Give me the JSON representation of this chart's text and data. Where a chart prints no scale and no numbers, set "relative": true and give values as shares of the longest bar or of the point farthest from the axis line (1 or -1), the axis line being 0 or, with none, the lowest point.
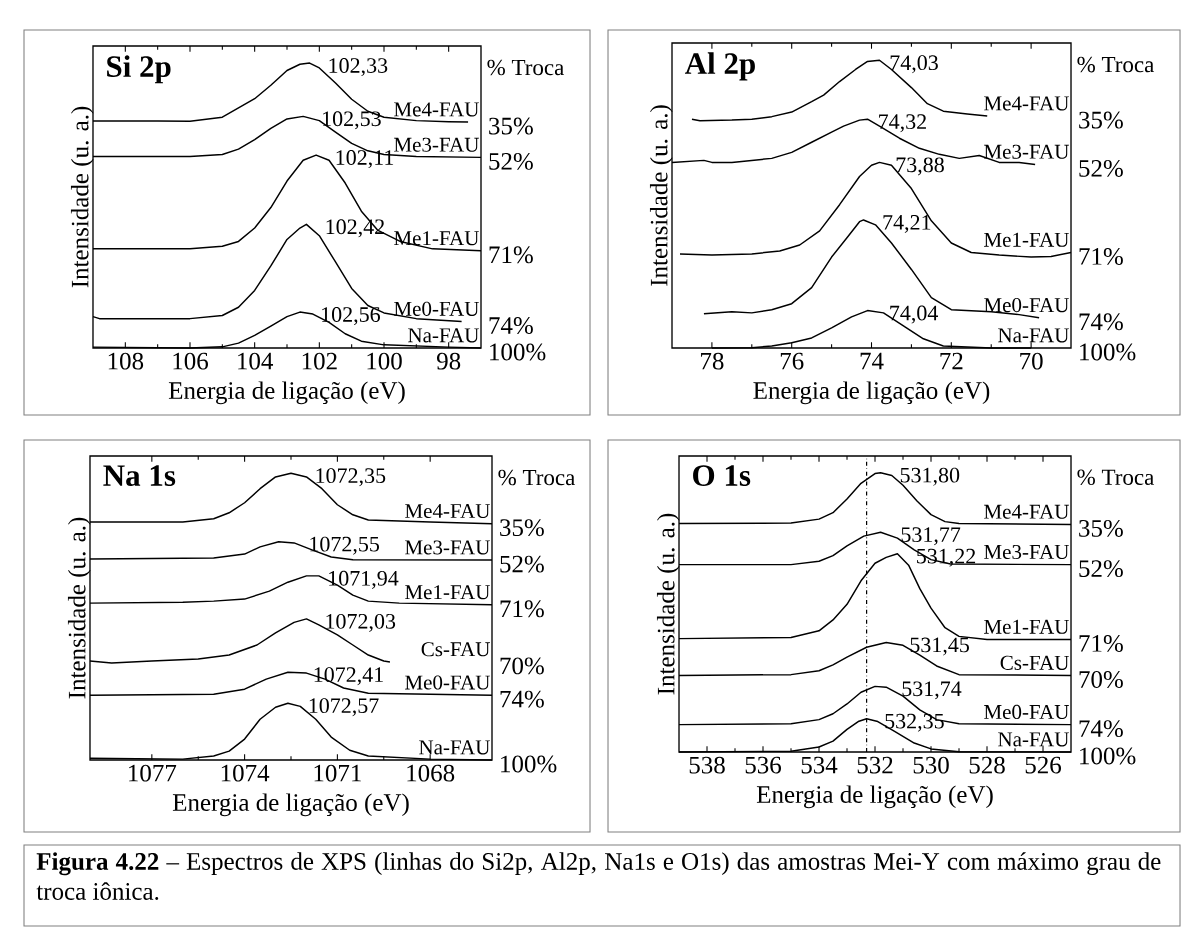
{
  "chart_data": [
    {
      "type": "line",
      "title": "Si 2p",
      "xlabel": "Energia de ligação (eV)",
      "ylabel": "Intensidade (u. a.)",
      "relative": true,
      "xlim": [
        109,
        97
      ],
      "xticks": [
        108,
        106,
        104,
        102,
        100,
        98
      ],
      "series": [
        {
          "name": "Me4-FAU",
          "color": "#000000",
          "x": [
            109,
            107,
            106,
            105,
            104,
            103.5,
            103,
            102.6,
            102.3,
            102,
            101.5,
            101,
            100.5,
            100,
            99,
            98,
            97.4
          ],
          "values": [
            0.797,
            0.797,
            0.796,
            0.81,
            0.875,
            0.922,
            0.974,
            0.996,
            1.0,
            0.983,
            0.93,
            0.873,
            0.831,
            0.81,
            0.798,
            0.794,
            0.793
          ]
        },
        {
          "name": "Me3-FAU",
          "color": "#000000",
          "x": [
            109,
            106,
            105,
            104.5,
            104,
            103.5,
            103,
            102.5,
            102,
            101.5,
            101,
            100.5,
            100,
            99,
            97
          ],
          "values": [
            0.672,
            0.672,
            0.679,
            0.698,
            0.731,
            0.771,
            0.804,
            0.813,
            0.798,
            0.758,
            0.718,
            0.692,
            0.679,
            0.672,
            0.669
          ]
        },
        {
          "name": "Me1-FAU",
          "color": "#000000",
          "x": [
            109,
            106,
            105,
            104.5,
            104,
            103.5,
            103,
            102.5,
            102.1,
            101.7,
            101.2,
            100.7,
            100.2,
            99.5,
            98.5,
            97
          ],
          "values": [
            0.348,
            0.348,
            0.357,
            0.374,
            0.421,
            0.493,
            0.586,
            0.659,
            0.677,
            0.659,
            0.579,
            0.48,
            0.414,
            0.374,
            0.348,
            0.341
          ]
        },
        {
          "name": "Me0-FAU",
          "color": "#000000",
          "x": [
            109,
            108.8,
            106,
            105,
            104.5,
            104,
            103.5,
            103,
            102.6,
            102.4,
            102,
            101.5,
            101,
            100.5,
            100,
            99,
            97.6
          ],
          "values": [
            0.11,
            0.103,
            0.103,
            0.114,
            0.143,
            0.202,
            0.288,
            0.381,
            0.421,
            0.434,
            0.394,
            0.302,
            0.209,
            0.149,
            0.123,
            0.103,
            0.093
          ]
        },
        {
          "name": "Na-FAU",
          "color": "#000000",
          "x": [
            109,
            106,
            105,
            104.5,
            104,
            103.5,
            103,
            102.6,
            102.2,
            101.7,
            101.2,
            100.7,
            100,
            98,
            97
          ],
          "values": [
            0.003,
            0,
            0.004,
            0.017,
            0.044,
            0.077,
            0.11,
            0.126,
            0.119,
            0.09,
            0.05,
            0.024,
            0.011,
            0.003,
            0
          ]
        }
      ],
      "annotations": [
        {
          "text": "102,33",
          "x": 102.33,
          "y": 1.0
        },
        {
          "text": "102,53",
          "x": 102.53,
          "y": 0.813
        },
        {
          "text": "102,11",
          "x": 102.11,
          "y": 0.677
        },
        {
          "text": "102,42",
          "x": 102.42,
          "y": 0.434
        },
        {
          "text": "102,56",
          "x": 102.56,
          "y": 0.126
        },
        "% Troca",
        "35%",
        "52%",
        "71%",
        "74%",
        "100%"
      ]
    },
    {
      "type": "line",
      "title": "Al 2p",
      "xlabel": "Energia de ligação (eV)",
      "ylabel": "Intensidade (u. a.)",
      "relative": true,
      "xlim": [
        79,
        69
      ],
      "xticks": [
        78,
        76,
        74,
        72,
        70
      ],
      "series": [
        {
          "name": "Me4-FAU",
          "color": "#000000",
          "x": [
            78.5,
            78.3,
            77.5,
            77,
            76.5,
            76,
            75.5,
            75.2,
            74.8,
            74.4,
            74.1,
            73.8,
            73.5,
            73.0,
            72.6,
            72.2,
            71.6,
            71.1
          ],
          "values": [
            0.795,
            0.79,
            0.792,
            0.795,
            0.804,
            0.82,
            0.856,
            0.879,
            0.926,
            0.968,
            0.996,
            1.0,
            0.968,
            0.905,
            0.849,
            0.823,
            0.813,
            0.806
          ]
        },
        {
          "name": "Me3-FAU",
          "color": "#000000",
          "x": [
            79,
            78.2,
            78,
            77.5,
            77,
            76.5,
            76,
            75.5,
            75,
            74.7,
            74.3,
            74.1,
            73.8,
            73.3,
            72.8,
            72.3,
            71.8,
            71.3,
            70.8,
            70.3,
            69.9
          ],
          "values": [
            0.645,
            0.652,
            0.645,
            0.645,
            0.652,
            0.659,
            0.68,
            0.715,
            0.75,
            0.771,
            0.792,
            0.795,
            0.771,
            0.729,
            0.694,
            0.673,
            0.659,
            0.669,
            0.645,
            0.645,
            0.638
          ]
        },
        {
          "name": "Me1-FAU",
          "color": "#000000",
          "x": [
            78.8,
            78,
            77,
            76.3,
            75.8,
            75.3,
            74.8,
            74.3,
            74.0,
            73.8,
            73.5,
            73.0,
            72.5,
            72.0,
            71.5,
            70.8,
            70,
            69.5,
            69
          ],
          "values": [
            0.327,
            0.323,
            0.327,
            0.337,
            0.358,
            0.407,
            0.498,
            0.596,
            0.635,
            0.645,
            0.635,
            0.554,
            0.442,
            0.365,
            0.332,
            0.323,
            0.316,
            0.318,
            0.332
          ]
        },
        {
          "name": "Me0-FAU",
          "color": "#000000",
          "x": [
            78.2,
            77.5,
            77,
            76.5,
            76,
            75.5,
            75.0,
            74.6,
            74.3,
            74.2,
            73.9,
            73.5,
            73,
            72.5,
            72,
            71,
            70.3,
            69.8
          ],
          "values": [
            0.119,
            0.126,
            0.122,
            0.133,
            0.154,
            0.21,
            0.316,
            0.386,
            0.439,
            0.445,
            0.428,
            0.365,
            0.273,
            0.175,
            0.133,
            0.126,
            0.116,
            0.105
          ]
        },
        {
          "name": "Na-FAU",
          "color": "#000000",
          "x": [
            78,
            77,
            76.5,
            76,
            75.5,
            75,
            74.5,
            74.1,
            73.7,
            73.2,
            72.7,
            72.2,
            71,
            70
          ],
          "values": [
            0,
            0.001,
            0.007,
            0.018,
            0.035,
            0.07,
            0.108,
            0.13,
            0.122,
            0.077,
            0.032,
            0.007,
            0,
            0
          ]
        }
      ],
      "annotations": [
        {
          "text": "74,03",
          "x": 74.03,
          "y": 1.0
        },
        {
          "text": "74,32",
          "x": 74.32,
          "y": 0.795
        },
        {
          "text": "73,88",
          "x": 73.88,
          "y": 0.645
        },
        {
          "text": "74,21",
          "x": 74.21,
          "y": 0.445
        },
        {
          "text": "74,04",
          "x": 74.04,
          "y": 0.13
        },
        "% Troca",
        "35%",
        "52%",
        "71%",
        "74%",
        "100%"
      ]
    },
    {
      "type": "line",
      "title": "Na 1s",
      "xlabel": "Energia de ligação (eV)",
      "ylabel": "Intensidade (u. a.)",
      "relative": true,
      "xlim": [
        1079,
        1066
      ],
      "xticks": [
        1077,
        1074,
        1071,
        1068
      ],
      "series": [
        {
          "name": "Me4-FAU",
          "color": "#000000",
          "x": [
            1079,
            1076,
            1075,
            1074.5,
            1074,
            1073.5,
            1073,
            1072.5,
            1072,
            1071.5,
            1071,
            1070.5,
            1070,
            1068,
            1066
          ],
          "values": [
            0.83,
            0.83,
            0.841,
            0.862,
            0.897,
            0.946,
            0.987,
            1.0,
            0.987,
            0.946,
            0.89,
            0.855,
            0.837,
            0.83,
            0.824
          ]
        },
        {
          "name": "Me3-FAU",
          "color": "#000000",
          "x": [
            1079,
            1075,
            1074,
            1073.5,
            1072.9,
            1072.4,
            1071.8,
            1071.2,
            1070.5,
            1066
          ],
          "values": [
            0.701,
            0.704,
            0.718,
            0.743,
            0.761,
            0.757,
            0.732,
            0.708,
            0.698,
            0.697
          ]
        },
        {
          "name": "Me1-FAU",
          "color": "#000000",
          "x": [
            1079,
            1076,
            1075,
            1074,
            1073.2,
            1072.6,
            1072.0,
            1071.6,
            1071,
            1070.5,
            1070,
            1069,
            1066
          ],
          "values": [
            0.547,
            0.55,
            0.554,
            0.561,
            0.589,
            0.62,
            0.642,
            0.642,
            0.61,
            0.575,
            0.554,
            0.547,
            0.541
          ]
        },
        {
          "name": "Cs-FAU",
          "color": "#000000",
          "x": [
            1079,
            1078.3,
            1077,
            1075.5,
            1074.5,
            1073.6,
            1073,
            1072.4,
            1072,
            1071.6,
            1071,
            1070.5,
            1070,
            1069.5,
            1069.3
          ],
          "values": [
            0.345,
            0.338,
            0.345,
            0.352,
            0.366,
            0.401,
            0.443,
            0.48,
            0.492,
            0.471,
            0.436,
            0.401,
            0.366,
            0.345,
            0.342
          ]
        },
        {
          "name": "Me0-FAU",
          "color": "#000000",
          "x": [
            1079,
            1075,
            1074,
            1073.3,
            1072.6,
            1072,
            1071.4,
            1070.8,
            1070,
            1066
          ],
          "values": [
            0.226,
            0.229,
            0.247,
            0.282,
            0.306,
            0.303,
            0.282,
            0.251,
            0.233,
            0.226
          ]
        },
        {
          "name": "Na-FAU",
          "color": "#000000",
          "x": [
            1079,
            1076,
            1075,
            1074.5,
            1074,
            1073.5,
            1073,
            1072.6,
            1072.2,
            1071.7,
            1071.2,
            1070.6,
            1070,
            1068,
            1066
          ],
          "values": [
            0.006,
            0.003,
            0.014,
            0.031,
            0.073,
            0.142,
            0.184,
            0.198,
            0.187,
            0.142,
            0.08,
            0.034,
            0.014,
            0.003,
            0
          ]
        }
      ],
      "annotations": [
        {
          "text": "1072,35",
          "x": 1072.35,
          "y": 1.0
        },
        {
          "text": "1072,55",
          "x": 1072.55,
          "y": 0.761
        },
        {
          "text": "1071,94",
          "x": 1071.94,
          "y": 0.642
        },
        {
          "text": "1072,03",
          "x": 1072.03,
          "y": 0.492
        },
        {
          "text": "1072,41",
          "x": 1072.41,
          "y": 0.306
        },
        {
          "text": "1072,57",
          "x": 1072.57,
          "y": 0.198
        },
        "% Troca",
        "35%",
        "52%",
        "71%",
        "70%",
        "74%",
        "100%"
      ]
    },
    {
      "type": "line",
      "title": "O 1s",
      "xlabel": "Energia de ligação (eV)",
      "ylabel": "Intensidade (u. a.)",
      "relative": true,
      "xlim": [
        539,
        525
      ],
      "xticks": [
        538,
        536,
        534,
        532,
        530,
        528,
        526
      ],
      "ref_lines": [
        {
          "axis": "x",
          "value": 532.3,
          "line_style": "dashdot"
        }
      ],
      "series": [
        {
          "name": "Me4-FAU",
          "color": "#000000",
          "x": [
            539,
            535,
            534,
            533.5,
            533,
            532.5,
            532,
            531.8,
            531.4,
            531,
            530.5,
            530,
            529.5,
            529,
            525
          ],
          "values": [
            0.818,
            0.82,
            0.834,
            0.857,
            0.906,
            0.962,
            0.997,
            1.0,
            0.99,
            0.955,
            0.899,
            0.85,
            0.825,
            0.818,
            0.815
          ]
        },
        {
          "name": "Me3-FAU",
          "color": "#000000",
          "x": [
            539,
            535,
            534,
            533.5,
            533,
            532.4,
            531.8,
            531.2,
            530.6,
            530,
            529.3,
            525
          ],
          "values": [
            0.671,
            0.671,
            0.683,
            0.703,
            0.738,
            0.773,
            0.787,
            0.766,
            0.724,
            0.689,
            0.673,
            0.671
          ]
        },
        {
          "name": "Me1-FAU",
          "color": "#000000",
          "x": [
            539,
            535,
            534,
            533.5,
            533,
            532.5,
            532,
            531.6,
            531.2,
            530.8,
            530.4,
            530,
            529.5,
            529,
            528,
            525
          ],
          "values": [
            0.406,
            0.41,
            0.434,
            0.473,
            0.529,
            0.613,
            0.676,
            0.697,
            0.71,
            0.669,
            0.585,
            0.515,
            0.445,
            0.414,
            0.403,
            0.403
          ]
        },
        {
          "name": "Cs-FAU",
          "color": "#000000",
          "x": [
            539,
            535,
            534,
            533.5,
            533,
            532.3,
            531.6,
            531.0,
            530.4,
            529.8,
            529,
            525
          ],
          "values": [
            0.274,
            0.277,
            0.291,
            0.312,
            0.34,
            0.375,
            0.392,
            0.382,
            0.347,
            0.308,
            0.277,
            0.274
          ]
        },
        {
          "name": "Me0-FAU",
          "color": "#000000",
          "x": [
            539,
            535,
            534,
            533.5,
            533,
            532.5,
            532,
            531.6,
            531,
            530.4,
            529.8,
            529,
            525
          ],
          "values": [
            0.098,
            0.101,
            0.116,
            0.137,
            0.172,
            0.214,
            0.235,
            0.232,
            0.2,
            0.151,
            0.116,
            0.101,
            0.098
          ]
        },
        {
          "name": "Na-FAU",
          "color": "#000000",
          "x": [
            539,
            535,
            534,
            533.5,
            533,
            532.6,
            532.3,
            531.9,
            531.3,
            530.6,
            530,
            529,
            525
          ],
          "values": [
            0,
            0.003,
            0.018,
            0.039,
            0.081,
            0.109,
            0.119,
            0.109,
            0.074,
            0.032,
            0.011,
            0.001,
            0
          ]
        }
      ],
      "annotations": [
        {
          "text": "531,80",
          "x": 531.8,
          "y": 1.0
        },
        {
          "text": "531,77",
          "x": 531.77,
          "y": 0.787
        },
        {
          "text": "531,22",
          "x": 531.22,
          "y": 0.71
        },
        {
          "text": "531,45",
          "x": 531.45,
          "y": 0.392
        },
        {
          "text": "531,74",
          "x": 531.74,
          "y": 0.235
        },
        {
          "text": "532,35",
          "x": 532.35,
          "y": 0.119
        },
        "% Troca",
        "35%",
        "52%",
        "71%",
        "70%",
        "74%",
        "100%",
        "**Figura 4.22** – Espectros de XPS (linhas do Si2p, Al2p, Na1s e O1s) das amostras Mei-Y com máximo grau de troca iônica."
      ]
    }
  ]
}
